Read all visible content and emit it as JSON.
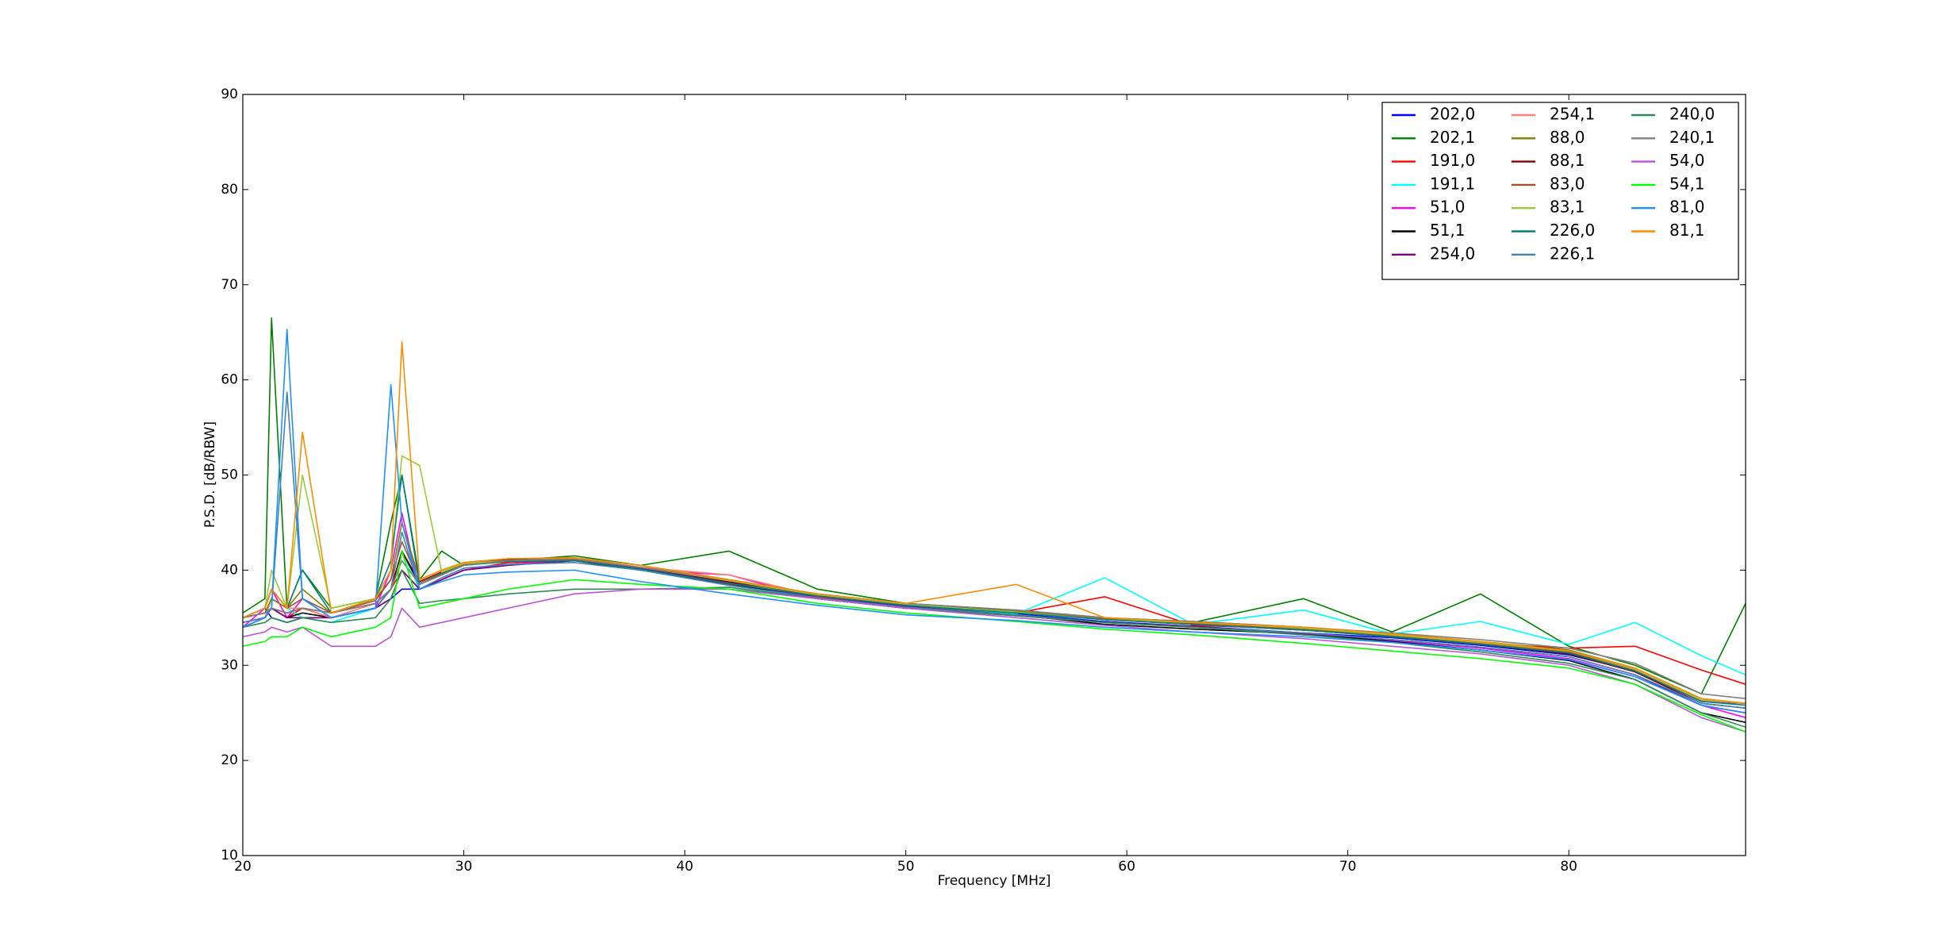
{
  "chart_data": {
    "type": "line",
    "xlabel": "Frequency [MHz]",
    "ylabel": "P.S.D. [dB/RBW]",
    "xlim": [
      20,
      88
    ],
    "ylim": [
      10,
      90
    ],
    "xticks": [
      20,
      30,
      40,
      50,
      60,
      70,
      80
    ],
    "yticks": [
      10,
      20,
      30,
      40,
      50,
      60,
      70,
      80,
      90
    ],
    "legend": "upper right",
    "legend_columns": 3,
    "x": [
      20,
      21,
      21.3,
      22,
      22.7,
      24,
      26,
      26.7,
      27.2,
      28,
      29,
      30,
      32,
      35,
      38,
      42,
      46,
      50,
      55,
      59,
      63,
      68,
      72,
      76,
      80,
      83,
      86,
      88
    ],
    "series": [
      {
        "name": "202,0",
        "color": "#0000ff",
        "values": [
          35,
          36,
          35,
          34.5,
          35,
          35,
          36,
          37,
          38,
          38,
          39,
          40,
          40.6,
          41,
          40.2,
          38.6,
          37.2,
          36.2,
          35.4,
          34.6,
          34.1,
          33.4,
          32.9,
          32.1,
          31.1,
          29.4,
          26.2,
          26
        ]
      },
      {
        "name": "202,1",
        "color": "#008000",
        "values": [
          35.5,
          37,
          66.5,
          36,
          40,
          36,
          37,
          45,
          50,
          39,
          42,
          40.5,
          41,
          41.5,
          40.5,
          42,
          38,
          36.5,
          35.8,
          35,
          34.5,
          37,
          33.5,
          37.5,
          32,
          30,
          27,
          36.5
        ]
      },
      {
        "name": "191,0",
        "color": "#ff0000",
        "values": [
          34.5,
          35,
          36,
          35,
          36,
          35,
          36,
          38,
          40,
          38,
          39,
          40,
          40.8,
          41,
          40,
          38.5,
          37.2,
          36.4,
          35.5,
          37.2,
          34.2,
          33.8,
          33,
          32.3,
          31.8,
          32,
          29.5,
          28
        ]
      },
      {
        "name": "191,1",
        "color": "#00ffff",
        "values": [
          34,
          35,
          37,
          36,
          35,
          34.5,
          36,
          38,
          42,
          38,
          39,
          40,
          40.5,
          41,
          40,
          38.4,
          37,
          36.2,
          35.4,
          39.2,
          34.3,
          35.8,
          33.3,
          34.6,
          32.2,
          34.5,
          31,
          29
        ]
      },
      {
        "name": "51,0",
        "color": "#ff00ff",
        "values": [
          34,
          36,
          38,
          35,
          37,
          35,
          36,
          40,
          46,
          38,
          39,
          40,
          40.6,
          41,
          40,
          39.5,
          37,
          36,
          35.2,
          34.5,
          34,
          33.2,
          32.6,
          31.8,
          30.7,
          28.8,
          25.8,
          24.5
        ]
      },
      {
        "name": "51,1",
        "color": "#000000",
        "values": [
          34.5,
          35,
          36,
          35,
          35.5,
          35,
          36,
          38,
          42,
          38.5,
          39.5,
          40.5,
          41,
          41,
          40,
          38.6,
          37,
          36,
          35.3,
          34.3,
          33.8,
          33.3,
          32.5,
          31.6,
          30.5,
          28.5,
          25,
          24
        ]
      },
      {
        "name": "254,0",
        "color": "#800080",
        "values": [
          34,
          35,
          36,
          35,
          35,
          35,
          36,
          37,
          40,
          38,
          39,
          40,
          40.5,
          41,
          40.2,
          38.7,
          37.1,
          36.2,
          35.3,
          34.5,
          34.1,
          33.3,
          32.7,
          31.9,
          30.9,
          29,
          25.8,
          25
        ]
      },
      {
        "name": "254,1",
        "color": "#fa8072",
        "values": [
          34.5,
          35,
          37,
          36,
          36,
          35,
          36.5,
          38,
          41,
          38.5,
          39.5,
          40.5,
          41,
          41.2,
          40.3,
          39.5,
          37.3,
          36.4,
          35.6,
          34.8,
          34.4,
          33.8,
          33.1,
          32.3,
          31.4,
          29.5,
          26.3,
          26
        ]
      },
      {
        "name": "88,0",
        "color": "#808000",
        "values": [
          35,
          35.5,
          37,
          36,
          38,
          35.5,
          37,
          39,
          45,
          39,
          40,
          40.8,
          41.2,
          41.3,
          40.5,
          39,
          37.5,
          36.5,
          35.7,
          35,
          34.6,
          34,
          33.3,
          32.5,
          31.6,
          29.7,
          26.5,
          26
        ]
      },
      {
        "name": "88,1",
        "color": "#800000",
        "values": [
          35,
          35.5,
          36,
          35.5,
          36,
          35.5,
          36.5,
          38,
          42,
          38.8,
          39.8,
          40.7,
          41.1,
          41.2,
          40.3,
          38.8,
          37.4,
          36.5,
          35.6,
          34.8,
          34.3,
          33.7,
          33,
          32.2,
          31.2,
          29.3,
          26,
          25.5
        ]
      },
      {
        "name": "83,0",
        "color": "#a0522d",
        "values": [
          35,
          36,
          38,
          36,
          37,
          35.5,
          36.8,
          39,
          43,
          38.7,
          39.7,
          40.6,
          41,
          41.1,
          40.3,
          38.9,
          37.5,
          36.4,
          35.6,
          34.9,
          34.4,
          33.8,
          33.1,
          32.3,
          31.4,
          29.6,
          26.4,
          26
        ]
      },
      {
        "name": "83,1",
        "color": "#9acd32",
        "values": [
          35,
          36,
          40,
          36,
          50,
          36,
          37,
          40,
          52,
          51,
          39.8,
          40.7,
          41,
          41.2,
          40.3,
          38.9,
          37.4,
          36.4,
          35.6,
          34.8,
          34.5,
          33.9,
          33.2,
          32.4,
          31.5,
          29.6,
          26.4,
          26
        ]
      },
      {
        "name": "226,0",
        "color": "#008080",
        "values": [
          35,
          36,
          38,
          36,
          40,
          35.5,
          37,
          41,
          50,
          38.5,
          39.6,
          40.5,
          40.9,
          41,
          40.1,
          38.6,
          37.3,
          36.3,
          35.5,
          34.8,
          34.3,
          33.7,
          33,
          32.2,
          31.3,
          29.4,
          26.2,
          25.8
        ]
      },
      {
        "name": "226,1",
        "color": "#4682b4",
        "values": [
          34.5,
          35,
          36,
          58.7,
          37,
          35,
          36,
          38,
          44,
          38,
          39.2,
          40.2,
          40.6,
          40.8,
          40,
          38.4,
          37.1,
          36.1,
          35.3,
          34.5,
          34,
          33.4,
          32.7,
          31.9,
          30.9,
          29,
          26,
          25.5
        ]
      },
      {
        "name": "240,0",
        "color": "#2e8b57",
        "values": [
          34,
          34.5,
          35,
          34.5,
          35,
          34.5,
          35,
          37,
          40,
          36.5,
          36.8,
          37,
          37.5,
          38,
          38,
          38.2,
          37,
          36,
          35.2,
          34.5,
          34,
          33.2,
          32.4,
          31.4,
          30.2,
          28.5,
          25,
          23.5
        ]
      },
      {
        "name": "240,1",
        "color": "#808080",
        "values": [
          35,
          35.5,
          36,
          35.5,
          36,
          35.5,
          36.5,
          38,
          41,
          38.5,
          39.5,
          40.5,
          41,
          41.2,
          40.3,
          39,
          37.5,
          36.5,
          35.8,
          35,
          34.6,
          34,
          33.4,
          32.7,
          31.8,
          30.2,
          27,
          26.5
        ]
      },
      {
        "name": "54,0",
        "color": "#ba55d3",
        "values": [
          33,
          33.5,
          34,
          33.5,
          34,
          32,
          32,
          33,
          36,
          34,
          34.5,
          35,
          36,
          37.5,
          38,
          38,
          37,
          36,
          35,
          34.2,
          33.5,
          32.8,
          32,
          31.2,
          30,
          28,
          24.5,
          23
        ]
      },
      {
        "name": "54,1",
        "color": "#00ff00",
        "values": [
          32,
          32.5,
          33,
          33,
          34,
          33,
          34,
          35,
          42,
          36,
          36.5,
          37,
          38,
          39,
          38.5,
          38,
          36.5,
          35.5,
          34.6,
          33.8,
          33.2,
          32.3,
          31.5,
          30.7,
          29.7,
          28,
          24.8,
          23
        ]
      },
      {
        "name": "81,0",
        "color": "#1e90ff",
        "values": [
          34,
          35,
          36,
          65.3,
          37,
          35,
          36,
          59.5,
          45,
          38,
          38.8,
          39.5,
          39.8,
          40,
          38.8,
          37.5,
          36.3,
          35.3,
          34.7,
          34,
          33.5,
          33,
          32.4,
          31.6,
          30.6,
          28.8,
          25.8,
          25
        ]
      },
      {
        "name": "81,1",
        "color": "#ff8c00",
        "values": [
          35,
          36,
          38,
          36,
          54.5,
          35.5,
          37,
          40,
          64,
          39,
          40,
          40.8,
          41.2,
          41.3,
          40.5,
          39,
          37.5,
          36.5,
          38.5,
          35,
          34.5,
          34,
          33.3,
          32.5,
          31.5,
          29.7,
          26.5,
          26
        ]
      }
    ]
  }
}
